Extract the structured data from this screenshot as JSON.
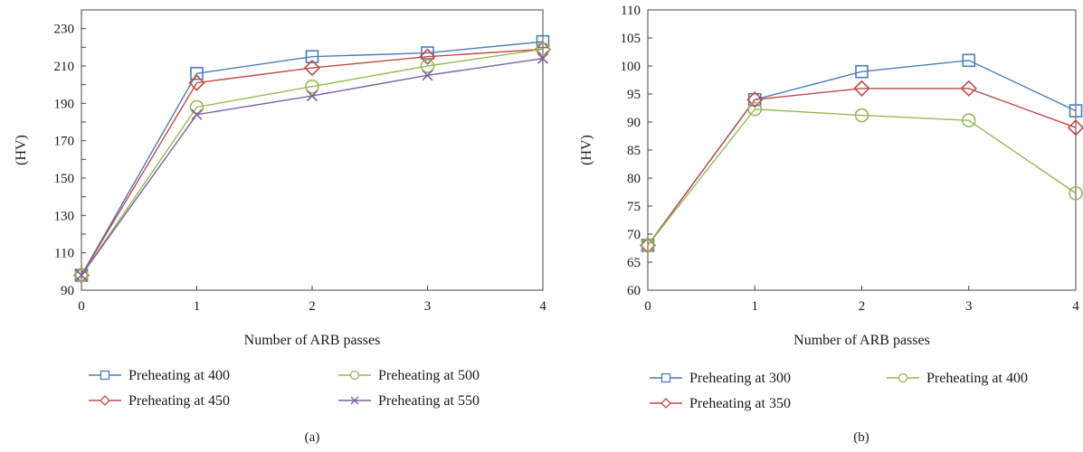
{
  "chart_data": [
    {
      "type": "line",
      "caption": "(a)",
      "xlabel": "Number of ARB passes",
      "ylabel": "(HV)",
      "x": [
        0,
        1,
        2,
        3,
        4
      ],
      "xticks": [
        "0",
        "1",
        "2",
        "3",
        "4"
      ],
      "yticks": [
        "90",
        "110",
        "130",
        "150",
        "170",
        "190",
        "210",
        "230"
      ],
      "xlim": [
        0,
        4
      ],
      "ylim": [
        90,
        240
      ],
      "grid": false,
      "legend_position": "bottom",
      "series": [
        {
          "name": "Preheating at 400",
          "color": "#4a7ebb",
          "marker": "square",
          "values": [
            98,
            206,
            215,
            217,
            223
          ]
        },
        {
          "name": "Preheating at 450",
          "color": "#be4b48",
          "marker": "diamond",
          "values": [
            98,
            201,
            209,
            215,
            219
          ]
        },
        {
          "name": "Preheating at 500",
          "color": "#98b954",
          "marker": "circle",
          "values": [
            98,
            188,
            199,
            210,
            219
          ]
        },
        {
          "name": "Preheating at 550",
          "color": "#7d60a0",
          "marker": "x",
          "values": [
            98,
            184,
            194,
            205,
            214
          ]
        }
      ]
    },
    {
      "type": "line",
      "caption": "(b)",
      "xlabel": "Number of ARB passes",
      "ylabel": "(HV)",
      "x": [
        0,
        1,
        2,
        3,
        4
      ],
      "xticks": [
        "0",
        "1",
        "2",
        "3",
        "4"
      ],
      "yticks": [
        "60",
        "65",
        "70",
        "75",
        "80",
        "85",
        "90",
        "95",
        "100",
        "105",
        "110"
      ],
      "xlim": [
        0,
        4
      ],
      "ylim": [
        60,
        110
      ],
      "grid": false,
      "legend_position": "bottom",
      "series": [
        {
          "name": "Preheating at 300",
          "color": "#4a7ebb",
          "marker": "square",
          "values": [
            68,
            94,
            99,
            101,
            92
          ]
        },
        {
          "name": "Preheating at 350",
          "color": "#be4b48",
          "marker": "diamond",
          "values": [
            68,
            94,
            96,
            96,
            89
          ]
        },
        {
          "name": "Preheating at 400",
          "color": "#98b954",
          "marker": "circle",
          "values": [
            68,
            92.3,
            91.2,
            90.3,
            77.3
          ]
        }
      ]
    }
  ]
}
